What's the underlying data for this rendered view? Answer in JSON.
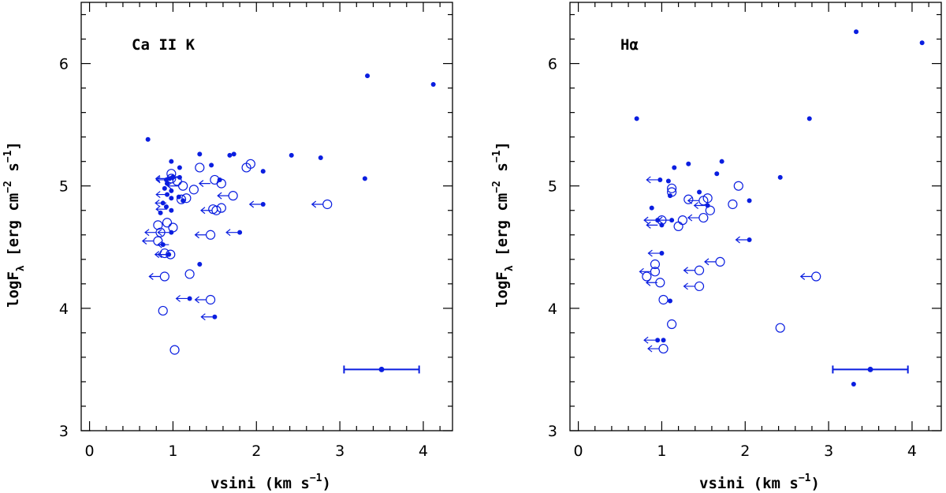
{
  "chart_data": [
    {
      "type": "scatter",
      "title": "Ca II K",
      "xlabel": "vsini (km s",
      "xlabel_sup": "−1",
      "xlabel_end": ")",
      "ylabel": "logF",
      "ylabel_sub": "λ",
      "ylabel_unit": " [erg cm",
      "ylabel_sup1": "−2",
      "ylabel_mid": " s",
      "ylabel_sup2": "−1",
      "ylabel_end": "]",
      "xlim": [
        -0.1,
        4.35
      ],
      "ylim": [
        3,
        6.5
      ],
      "xticks": [
        0,
        1,
        2,
        3,
        4
      ],
      "yticks": [
        3,
        4,
        5,
        6
      ],
      "series": [
        {
          "marker": "filled",
          "points": [
            [
              0.7,
              5.38
            ],
            [
              0.98,
              5.2
            ],
            [
              1.08,
              5.15
            ],
            [
              0.92,
              5.05
            ],
            [
              0.96,
              5.06
            ],
            [
              1.0,
              5.07
            ],
            [
              0.93,
              5.02
            ],
            [
              0.9,
              4.98
            ],
            [
              0.98,
              4.96
            ],
            [
              0.93,
              4.93
            ],
            [
              0.98,
              4.9
            ],
            [
              1.07,
              4.91
            ],
            [
              1.12,
              4.88
            ],
            [
              1.08,
              5.07
            ],
            [
              0.88,
              4.86
            ],
            [
              0.92,
              4.83
            ],
            [
              0.98,
              4.8
            ],
            [
              0.85,
              4.78
            ],
            [
              0.98,
              4.62
            ],
            [
              0.88,
              4.52
            ],
            [
              0.95,
              4.44
            ],
            [
              1.32,
              5.26
            ],
            [
              1.46,
              5.17
            ],
            [
              1.56,
              5.05
            ],
            [
              1.68,
              5.25
            ],
            [
              1.73,
              5.26
            ],
            [
              2.08,
              5.12
            ],
            [
              2.42,
              5.25
            ],
            [
              2.77,
              5.23
            ],
            [
              3.33,
              5.9
            ],
            [
              4.12,
              5.83
            ],
            [
              3.3,
              5.06
            ],
            [
              1.32,
              4.36
            ],
            [
              2.08,
              4.85
            ],
            [
              1.8,
              4.62
            ],
            [
              1.2,
              4.08
            ],
            [
              1.5,
              3.93
            ]
          ]
        },
        {
          "marker": "open",
          "points": [
            [
              0.98,
              5.1
            ],
            [
              0.98,
              5.06
            ],
            [
              1.05,
              5.04
            ],
            [
              1.12,
              5.0
            ],
            [
              1.16,
              4.9
            ],
            [
              1.25,
              4.97
            ],
            [
              1.32,
              5.15
            ],
            [
              1.5,
              5.05
            ],
            [
              1.58,
              5.02
            ],
            [
              1.88,
              5.15
            ],
            [
              1.93,
              5.18
            ],
            [
              1.58,
              4.82
            ],
            [
              1.52,
              4.8
            ],
            [
              1.48,
              4.81
            ],
            [
              1.72,
              4.92
            ],
            [
              2.85,
              4.85
            ],
            [
              0.93,
              4.7
            ],
            [
              1.0,
              4.66
            ],
            [
              0.85,
              4.62
            ],
            [
              0.82,
              4.55
            ],
            [
              0.9,
              4.45
            ],
            [
              0.97,
              4.44
            ],
            [
              0.9,
              4.26
            ],
            [
              1.2,
              4.28
            ],
            [
              1.45,
              4.6
            ],
            [
              1.45,
              4.07
            ],
            [
              0.88,
              3.98
            ],
            [
              1.02,
              3.66
            ],
            [
              0.82,
              4.68
            ],
            [
              1.1,
              4.89
            ]
          ]
        },
        {
          "marker": "arrow-filled",
          "points": [
            [
              1.12,
              5.07
            ],
            [
              0.96,
              5.05
            ],
            [
              0.96,
              4.93
            ],
            [
              0.95,
              4.86
            ],
            [
              0.96,
              4.81
            ],
            [
              0.98,
              4.62
            ],
            [
              0.98,
              4.52
            ],
            [
              0.98,
              4.44
            ],
            [
              2.08,
              4.85
            ],
            [
              1.8,
              4.62
            ],
            [
              1.2,
              4.08
            ],
            [
              1.5,
              3.93
            ]
          ]
        },
        {
          "marker": "arrow-open",
          "points": [
            [
              0.98,
              5.06
            ],
            [
              1.5,
              5.02
            ],
            [
              1.52,
              4.8
            ],
            [
              1.72,
              4.92
            ],
            [
              2.85,
              4.85
            ],
            [
              0.85,
              4.62
            ],
            [
              0.82,
              4.55
            ],
            [
              0.97,
              4.44
            ],
            [
              0.9,
              4.26
            ],
            [
              1.45,
              4.6
            ],
            [
              1.45,
              4.07
            ],
            [
              1.12,
              5.0
            ]
          ]
        }
      ],
      "errorbar": {
        "x": 3.5,
        "y": 3.5,
        "xerr": 0.45
      }
    },
    {
      "type": "scatter",
      "title": "Hα",
      "xlabel": "vsini (km s",
      "xlabel_sup": "−1",
      "xlabel_end": ")",
      "ylabel": "logF",
      "ylabel_sub": "λ",
      "ylabel_unit": " [erg cm",
      "ylabel_sup1": "−2",
      "ylabel_mid": " s",
      "ylabel_sup2": "−1",
      "ylabel_end": "]",
      "xlim": [
        -0.1,
        4.35
      ],
      "ylim": [
        3,
        6.5
      ],
      "xticks": [
        0,
        1,
        2,
        3,
        4
      ],
      "yticks": [
        3,
        4,
        5,
        6
      ],
      "series": [
        {
          "marker": "filled",
          "points": [
            [
              0.7,
              5.55
            ],
            [
              0.98,
              5.05
            ],
            [
              1.08,
              5.04
            ],
            [
              1.15,
              5.15
            ],
            [
              1.32,
              5.18
            ],
            [
              1.45,
              4.95
            ],
            [
              1.66,
              5.1
            ],
            [
              1.72,
              5.2
            ],
            [
              2.05,
              4.88
            ],
            [
              2.42,
              5.07
            ],
            [
              2.77,
              5.55
            ],
            [
              3.33,
              6.26
            ],
            [
              4.12,
              6.17
            ],
            [
              0.88,
              4.82
            ],
            [
              1.1,
              4.92
            ],
            [
              0.95,
              4.72
            ],
            [
              1.0,
              4.68
            ],
            [
              1.12,
              4.72
            ],
            [
              1.55,
              4.84
            ],
            [
              1.0,
              4.45
            ],
            [
              2.05,
              4.56
            ],
            [
              1.1,
              4.06
            ],
            [
              0.95,
              3.74
            ],
            [
              1.02,
              3.74
            ],
            [
              3.3,
              3.38
            ]
          ]
        },
        {
          "marker": "open",
          "points": [
            [
              1.12,
              4.98
            ],
            [
              1.12,
              4.95
            ],
            [
              1.32,
              4.89
            ],
            [
              1.5,
              4.88
            ],
            [
              1.55,
              4.9
            ],
            [
              1.58,
              4.8
            ],
            [
              1.85,
              4.85
            ],
            [
              1.92,
              5.0
            ],
            [
              1.5,
              4.74
            ],
            [
              1.2,
              4.67
            ],
            [
              1.25,
              4.72
            ],
            [
              1.0,
              4.72
            ],
            [
              0.92,
              4.36
            ],
            [
              0.92,
              4.3
            ],
            [
              0.82,
              4.26
            ],
            [
              0.98,
              4.21
            ],
            [
              1.02,
              4.07
            ],
            [
              1.45,
              4.31
            ],
            [
              1.7,
              4.38
            ],
            [
              1.45,
              4.18
            ],
            [
              2.85,
              4.26
            ],
            [
              1.12,
              3.87
            ],
            [
              2.42,
              3.84
            ],
            [
              1.02,
              3.67
            ]
          ]
        },
        {
          "marker": "arrow-filled",
          "points": [
            [
              0.98,
              5.05
            ],
            [
              0.95,
              4.72
            ],
            [
              1.12,
              4.72
            ],
            [
              1.55,
              4.84
            ],
            [
              1.0,
              4.45
            ],
            [
              2.05,
              4.56
            ],
            [
              0.95,
              3.74
            ],
            [
              0.98,
              4.68
            ]
          ]
        },
        {
          "marker": "arrow-open",
          "points": [
            [
              1.5,
              4.88
            ],
            [
              1.5,
              4.74
            ],
            [
              1.7,
              4.38
            ],
            [
              1.45,
              4.31
            ],
            [
              1.45,
              4.18
            ],
            [
              2.85,
              4.26
            ],
            [
              0.92,
              4.3
            ],
            [
              1.02,
              3.67
            ],
            [
              1.0,
              4.21
            ]
          ]
        }
      ],
      "errorbar": {
        "x": 3.5,
        "y": 3.5,
        "xerr": 0.45
      }
    }
  ],
  "colors": {
    "marker": "#0a1ee0",
    "axis": "#000000"
  }
}
